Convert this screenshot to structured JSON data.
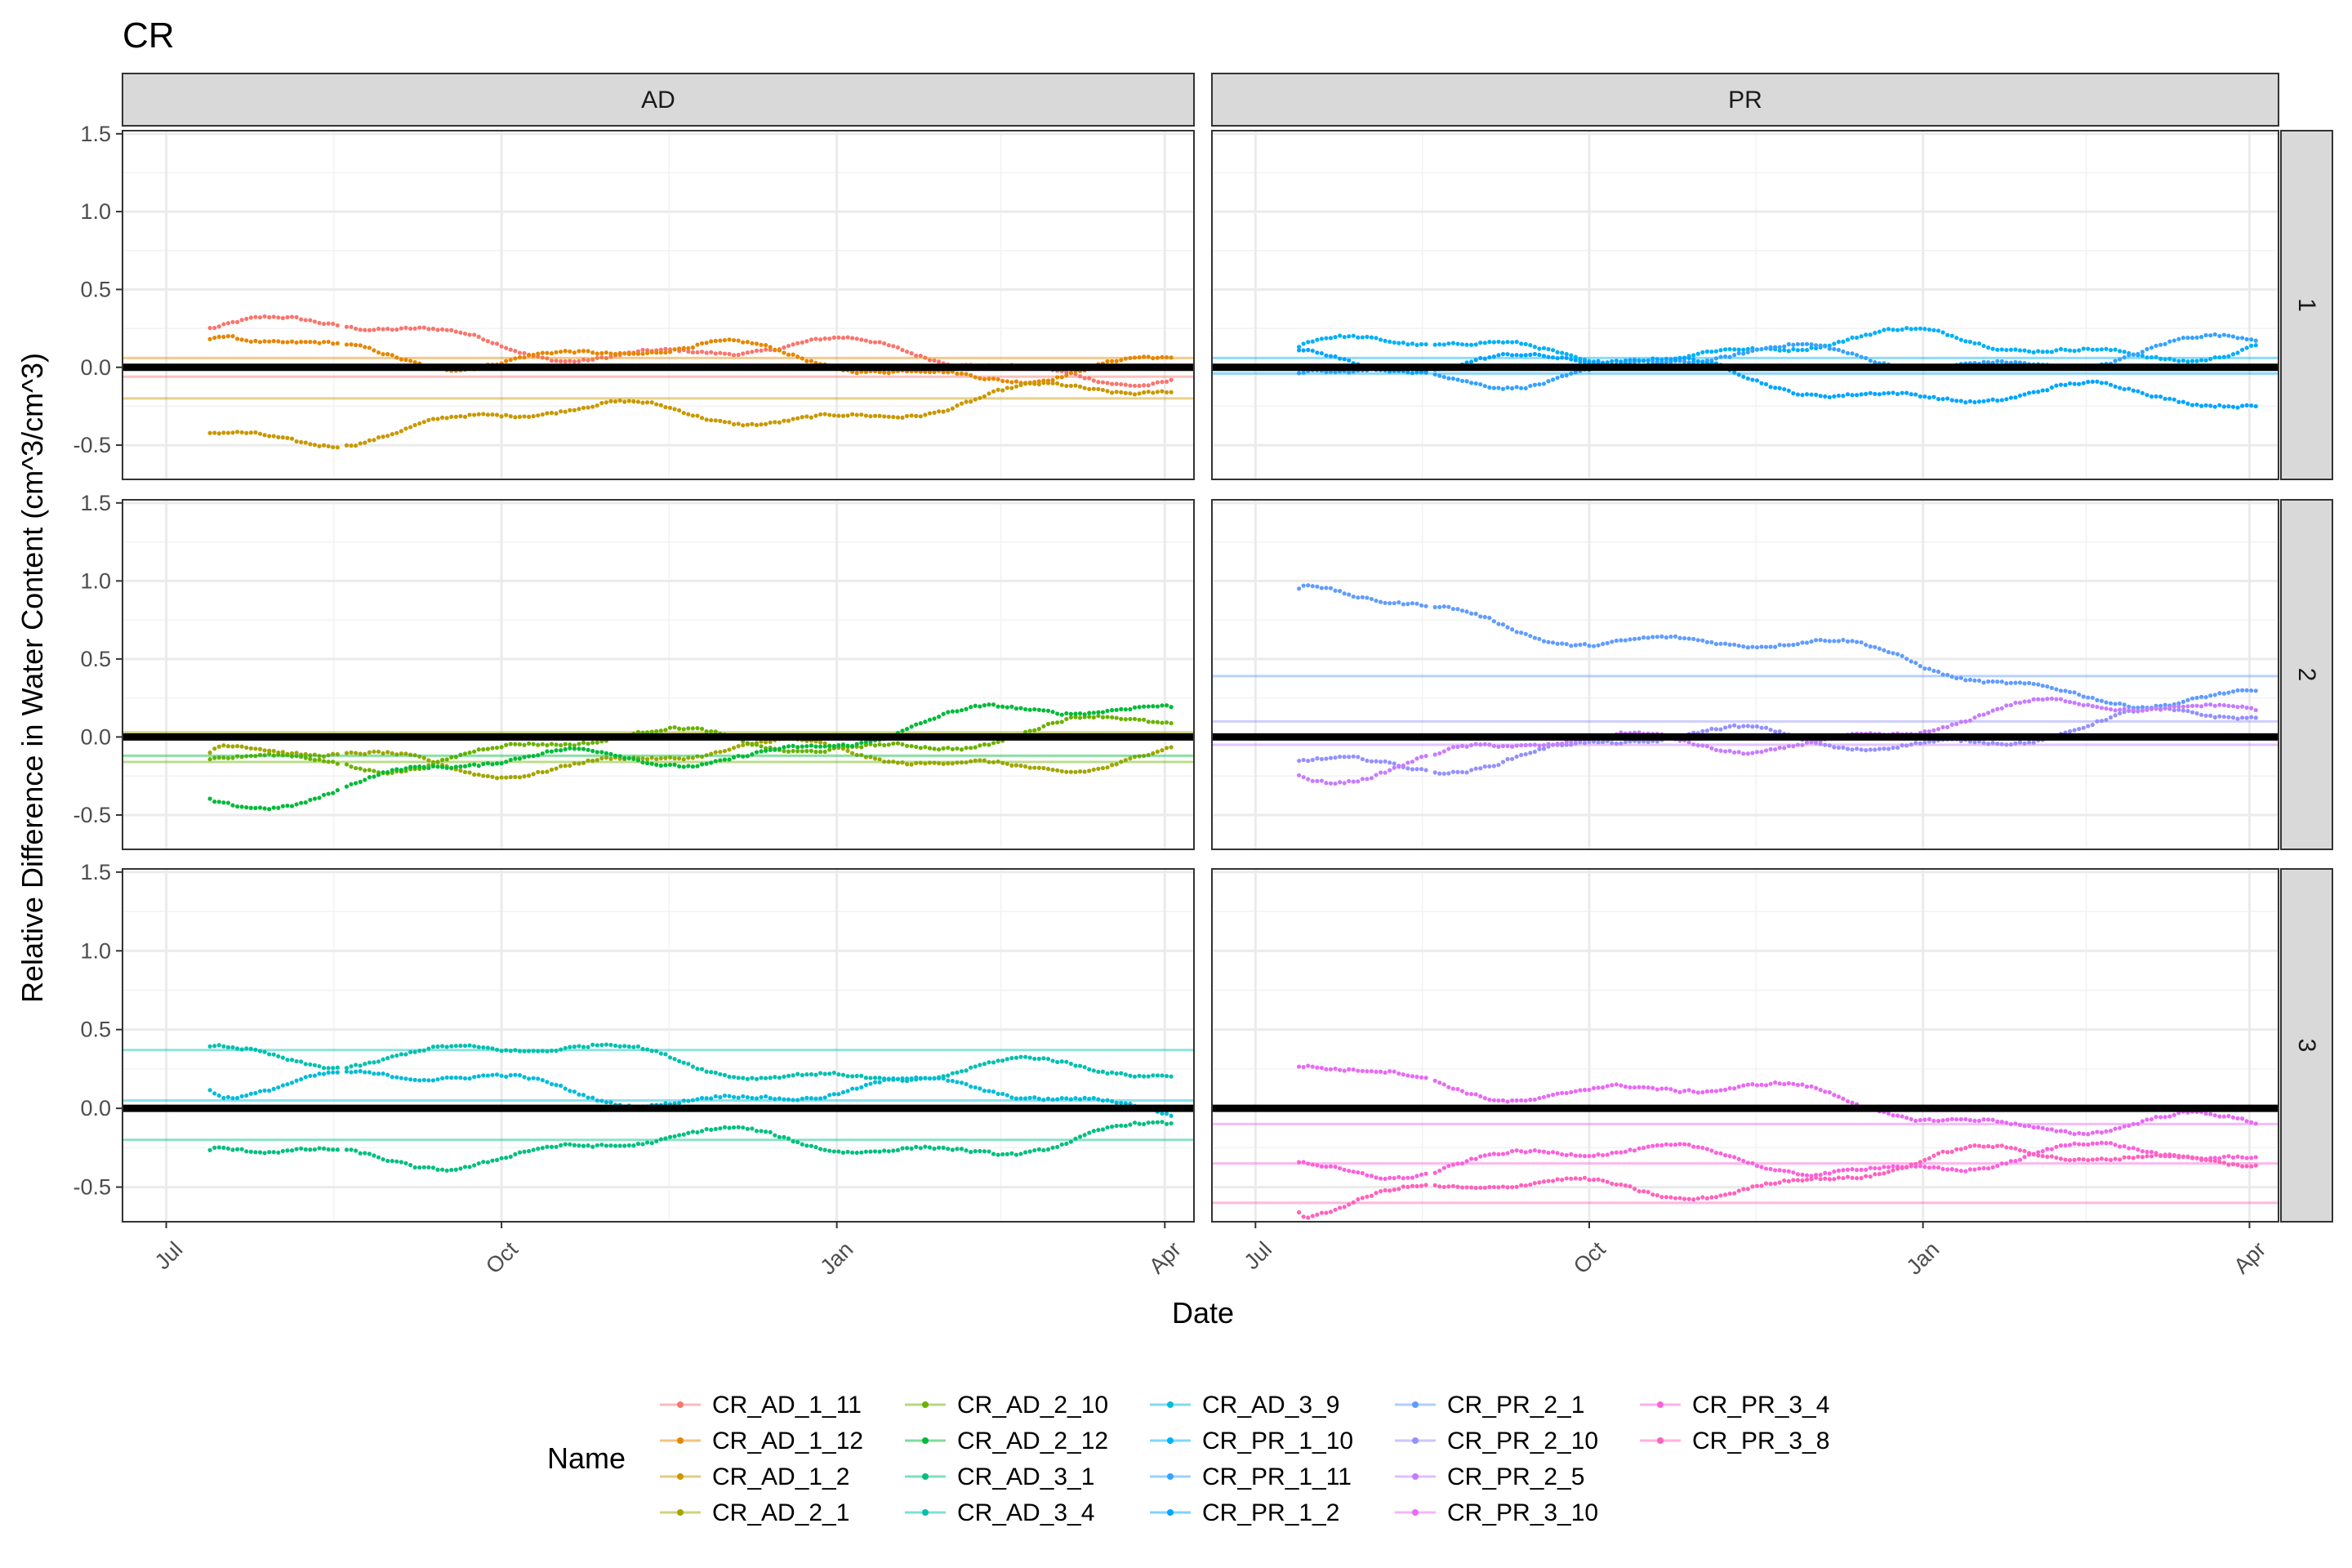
{
  "chart_data": {
    "type": "scatter",
    "title": "CR",
    "xlabel": "Date",
    "ylabel": "Relative Difference in Water Content (cm^3/cm^3)",
    "ylim": [
      -0.72,
      1.52
    ],
    "y_ticks": [
      "-0.5",
      "0.0",
      "0.5",
      "1.0",
      "1.5"
    ],
    "x_ticks": [
      "Jul",
      "Oct",
      "Jan",
      "Apr"
    ],
    "x_range": [
      "2020-06-19",
      "2021-04-09"
    ],
    "x_tick_dates": [
      "2020-07-01",
      "2020-10-01",
      "2021-01-01",
      "2021-04-01"
    ],
    "facet_columns": [
      "AD",
      "PR"
    ],
    "facet_rows": [
      "1",
      "2",
      "3"
    ],
    "zero_line": 0,
    "grid": true,
    "legend": {
      "title": "Name",
      "position": "bottom"
    },
    "series": [
      {
        "name": "CR_AD_1_11",
        "color": "#F8766D",
        "panel": [
          "AD",
          "1"
        ],
        "mean": -0.06,
        "start": 0.25,
        "end": -0.02
      },
      {
        "name": "CR_AD_1_12",
        "color": "#E58700",
        "panel": [
          "AD",
          "1"
        ],
        "mean": 0.06,
        "start": 0.15,
        "end": -0.03
      },
      {
        "name": "CR_AD_1_2",
        "color": "#C99800",
        "panel": [
          "AD",
          "1"
        ],
        "mean": -0.2,
        "start": -0.42,
        "end": -0.18
      },
      {
        "name": "CR_AD_2_1",
        "color": "#A3A500",
        "panel": [
          "AD",
          "2"
        ],
        "mean": 0.03,
        "start": -0.15,
        "end": -0.12
      },
      {
        "name": "CR_AD_2_10",
        "color": "#6BB100",
        "panel": [
          "AD",
          "2"
        ],
        "mean": -0.16,
        "start": -0.14,
        "end": 0.05
      },
      {
        "name": "CR_AD_2_12",
        "color": "#00BA38",
        "panel": [
          "AD",
          "2"
        ],
        "mean": -0.12,
        "start": -0.38,
        "end": 0.2
      },
      {
        "name": "CR_AD_3_1",
        "color": "#00BF7D",
        "panel": [
          "AD",
          "3"
        ],
        "mean": -0.2,
        "start": -0.3,
        "end": -0.18
      },
      {
        "name": "CR_AD_3_4",
        "color": "#00C0AF",
        "panel": [
          "AD",
          "3"
        ],
        "mean": 0.37,
        "start": 0.4,
        "end": 0.18
      },
      {
        "name": "CR_AD_3_9",
        "color": "#00BCD8",
        "panel": [
          "AD",
          "3"
        ],
        "mean": 0.05,
        "start": 0.17,
        "end": 0.05
      },
      {
        "name": "CR_PR_1_10",
        "color": "#00B0F6",
        "panel": [
          "PR",
          "1"
        ],
        "mean": 0.06,
        "start": 0.1,
        "end": 0.15
      },
      {
        "name": "CR_PR_1_11",
        "color": "#35A2FF",
        "panel": [
          "PR",
          "1"
        ],
        "mean": 0.0,
        "start": -0.05,
        "end": 0.12
      },
      {
        "name": "CR_PR_1_2",
        "color": "#00A5FF",
        "panel": [
          "PR",
          "1"
        ],
        "mean": -0.04,
        "start": 0.12,
        "end": -0.28
      },
      {
        "name": "CR_PR_2_1",
        "color": "#619CFF",
        "panel": [
          "PR",
          "2"
        ],
        "mean": 0.39,
        "start": 0.9,
        "end": 0.2
      },
      {
        "name": "CR_PR_2_10",
        "color": "#9590FF",
        "panel": [
          "PR",
          "2"
        ],
        "mean": 0.1,
        "start": -0.15,
        "end": 0.1
      },
      {
        "name": "CR_PR_2_5",
        "color": "#C77CFF",
        "panel": [
          "PR",
          "2"
        ],
        "mean": -0.05,
        "start": -0.2,
        "end": 0.22
      },
      {
        "name": "CR_PR_3_10",
        "color": "#E76BF3",
        "panel": [
          "PR",
          "3"
        ],
        "mean": -0.1,
        "start": 0.25,
        "end": -0.15
      },
      {
        "name": "CR_PR_3_4",
        "color": "#FA62DB",
        "panel": [
          "PR",
          "3"
        ],
        "mean": -0.35,
        "start": -0.33,
        "end": -0.33
      },
      {
        "name": "CR_PR_3_8",
        "color": "#FF62BC",
        "panel": [
          "PR",
          "3"
        ],
        "mean": -0.6,
        "start": -0.62,
        "end": -0.25
      }
    ]
  }
}
